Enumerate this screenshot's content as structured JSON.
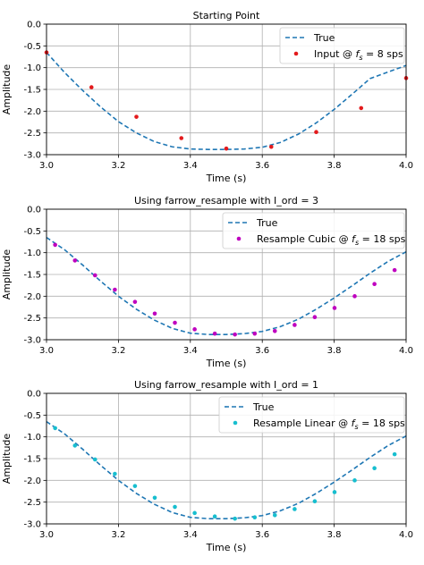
{
  "chart_data": [
    {
      "type": "line",
      "title": "Starting Point",
      "xlabel": "Time (s)",
      "ylabel": "Amplitude",
      "xlim": [
        3.0,
        4.0
      ],
      "ylim": [
        -3.0,
        0.0
      ],
      "xticks": [
        "3.0",
        "3.2",
        "3.4",
        "3.6",
        "3.8",
        "4.0"
      ],
      "yticks": [
        "0.0",
        "-0.5",
        "-1.0",
        "-1.5",
        "-2.0",
        "-2.5",
        "-3.0"
      ],
      "grid": true,
      "legend_position": "top-right",
      "series": [
        {
          "name": "True",
          "style": "dashed-line",
          "color": "#1f77b4",
          "x": [
            3.0,
            3.05,
            3.1,
            3.15,
            3.2,
            3.25,
            3.3,
            3.35,
            3.4,
            3.45,
            3.5,
            3.55,
            3.6,
            3.65,
            3.7,
            3.75,
            3.8,
            3.85,
            3.9,
            3.95,
            4.0
          ],
          "y": [
            -0.65,
            -1.11,
            -1.52,
            -1.9,
            -2.24,
            -2.5,
            -2.7,
            -2.82,
            -2.87,
            -2.88,
            -2.88,
            -2.87,
            -2.83,
            -2.72,
            -2.53,
            -2.27,
            -1.96,
            -1.61,
            -1.25,
            -1.1,
            -0.95
          ]
        },
        {
          "name": "Input @ fs = 8 sps",
          "legend_label": "Input @ ",
          "legend_math": "f",
          "legend_sub": "s",
          "legend_suffix": " = 8 sps",
          "style": "markers",
          "color": "#e31a1c",
          "x": [
            3.0,
            3.125,
            3.25,
            3.375,
            3.5,
            3.625,
            3.75,
            3.875,
            4.0
          ],
          "y": [
            -0.65,
            -1.45,
            -2.13,
            -2.62,
            -2.86,
            -2.82,
            -2.48,
            -1.93,
            -1.24
          ]
        }
      ]
    },
    {
      "type": "line",
      "title": "Using farrow_resample with I_ord = 3",
      "xlabel": "Time (s)",
      "ylabel": "Amplitude",
      "xlim": [
        3.0,
        4.0
      ],
      "ylim": [
        -3.0,
        0.0
      ],
      "xticks": [
        "3.0",
        "3.2",
        "3.4",
        "3.6",
        "3.8",
        "4.0"
      ],
      "yticks": [
        "0.0",
        "-0.5",
        "-1.0",
        "-1.5",
        "-2.0",
        "-2.5",
        "-3.0"
      ],
      "grid": true,
      "legend_position": "top-right",
      "series": [
        {
          "name": "True",
          "style": "dashed-line",
          "color": "#1f77b4",
          "x": [
            3.0,
            3.05,
            3.1,
            3.15,
            3.2,
            3.25,
            3.3,
            3.35,
            3.4,
            3.45,
            3.5,
            3.55,
            3.6,
            3.65,
            3.7,
            3.75,
            3.8,
            3.85,
            3.9,
            3.95,
            4.0
          ],
          "y": [
            -0.65,
            -0.93,
            -1.28,
            -1.65,
            -2.0,
            -2.3,
            -2.55,
            -2.74,
            -2.85,
            -2.88,
            -2.88,
            -2.86,
            -2.81,
            -2.7,
            -2.53,
            -2.3,
            -2.04,
            -1.76,
            -1.47,
            -1.2,
            -0.98
          ]
        },
        {
          "name": "Resample Cubic @ fs = 18 sps",
          "legend_label": "Resample Cubic @ ",
          "legend_math": "f",
          "legend_sub": "s",
          "legend_suffix": " = 18 sps",
          "style": "markers",
          "color": "#bf00bf",
          "x": [
            3.024,
            3.079,
            3.135,
            3.19,
            3.246,
            3.301,
            3.357,
            3.412,
            3.468,
            3.524,
            3.579,
            3.635,
            3.69,
            3.746,
            3.801,
            3.857,
            3.912,
            3.968
          ],
          "y": [
            -0.82,
            -1.18,
            -1.52,
            -1.85,
            -2.13,
            -2.4,
            -2.61,
            -2.76,
            -2.86,
            -2.88,
            -2.86,
            -2.8,
            -2.66,
            -2.48,
            -2.27,
            -2.0,
            -1.72,
            -1.4
          ]
        }
      ]
    },
    {
      "type": "line",
      "title": "Using farrow_resample with I_ord = 1",
      "xlabel": "Time (s)",
      "ylabel": "Amplitude",
      "xlim": [
        3.0,
        4.0
      ],
      "ylim": [
        -3.0,
        0.0
      ],
      "xticks": [
        "3.0",
        "3.2",
        "3.4",
        "3.6",
        "3.8",
        "4.0"
      ],
      "yticks": [
        "0.0",
        "-0.5",
        "-1.0",
        "-1.5",
        "-2.0",
        "-2.5",
        "-3.0"
      ],
      "grid": true,
      "legend_position": "top-right",
      "series": [
        {
          "name": "True",
          "style": "dashed-line",
          "color": "#1f77b4",
          "x": [
            3.0,
            3.05,
            3.1,
            3.15,
            3.2,
            3.25,
            3.3,
            3.35,
            3.4,
            3.45,
            3.5,
            3.55,
            3.6,
            3.65,
            3.7,
            3.75,
            3.8,
            3.85,
            3.9,
            3.95,
            4.0
          ],
          "y": [
            -0.65,
            -0.93,
            -1.28,
            -1.65,
            -2.0,
            -2.3,
            -2.55,
            -2.74,
            -2.85,
            -2.88,
            -2.88,
            -2.86,
            -2.81,
            -2.7,
            -2.53,
            -2.3,
            -2.04,
            -1.76,
            -1.47,
            -1.2,
            -0.98
          ]
        },
        {
          "name": "Resample Linear @ fs = 18 sps",
          "legend_label": "Resample Linear @ ",
          "legend_math": "f",
          "legend_sub": "s",
          "legend_suffix": " = 18 sps",
          "style": "markers",
          "color": "#17becf",
          "x": [
            3.024,
            3.079,
            3.135,
            3.19,
            3.246,
            3.301,
            3.357,
            3.412,
            3.468,
            3.524,
            3.579,
            3.635,
            3.69,
            3.746,
            3.801,
            3.857,
            3.912,
            3.968
          ],
          "y": [
            -0.8,
            -1.2,
            -1.52,
            -1.85,
            -2.13,
            -2.4,
            -2.61,
            -2.75,
            -2.83,
            -2.88,
            -2.85,
            -2.8,
            -2.66,
            -2.48,
            -2.27,
            -2.0,
            -1.72,
            -1.4
          ]
        }
      ]
    }
  ]
}
